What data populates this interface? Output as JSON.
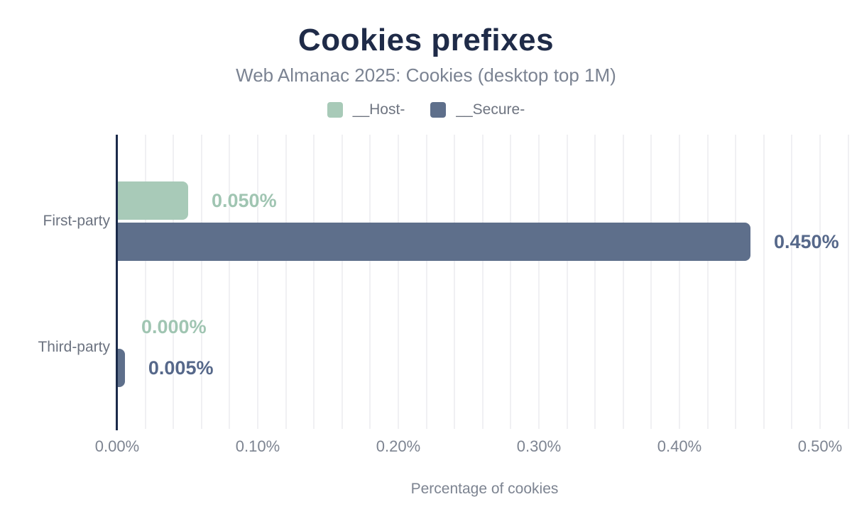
{
  "colors": {
    "background": "#ffffff",
    "title_text": "#1f2b48",
    "muted_text": "#7b8392",
    "axis_line": "#1b2a4a",
    "gridline": "#f0f0f3",
    "host_series": "#a8cab8",
    "secure_series": "#5e6f8b"
  },
  "chart_data": {
    "type": "bar",
    "orientation": "horizontal",
    "title": "Cookies prefixes",
    "subtitle": "Web Almanac 2025: Cookies (desktop top 1M)",
    "xlabel": "Percentage of cookies",
    "categories": [
      "First-party",
      "Third-party"
    ],
    "series": [
      {
        "name": "__Host-",
        "color": "#a8cab8",
        "label_color": "#a0c5b2",
        "values": [
          0.05,
          0.0
        ],
        "value_labels": [
          "0.050%",
          "0.000%"
        ]
      },
      {
        "name": "__Secure-",
        "color": "#5e6f8b",
        "label_color": "#56688a",
        "values": [
          0.45,
          0.005
        ],
        "value_labels": [
          "0.450%",
          "0.005%"
        ]
      }
    ],
    "xlim": [
      0,
      0.5
    ],
    "x_tick_interval": 0.1,
    "x_ticks": [
      "0.00%",
      "0.10%",
      "0.20%",
      "0.30%",
      "0.40%",
      "0.50%"
    ],
    "grid": {
      "show": true,
      "minor_interval": 0.02,
      "direction": "vertical"
    },
    "legend_position": "top"
  }
}
